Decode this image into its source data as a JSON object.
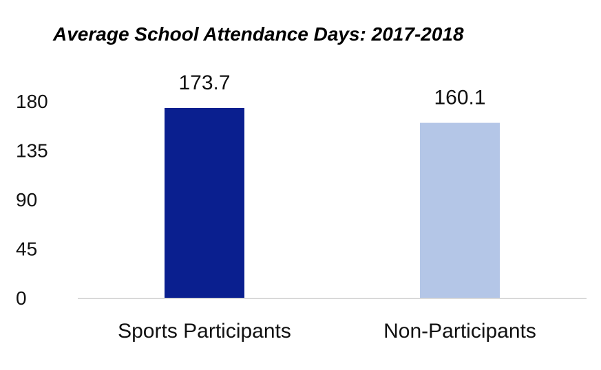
{
  "chart_data": {
    "type": "bar",
    "title": "Average School Attendance Days: 2017-2018",
    "categories": [
      "Sports Participants",
      "Non-Participants"
    ],
    "values": [
      173.7,
      160.1
    ],
    "value_labels": [
      "173.7",
      "160.1"
    ],
    "bar_colors": [
      "#0a1f8f",
      "#b4c6e7"
    ],
    "ylim": [
      0,
      180
    ],
    "yticks": [
      0,
      45,
      90,
      135,
      180
    ],
    "ytick_labels": [
      "0",
      "45",
      "90",
      "135",
      "180"
    ],
    "xlabel": "",
    "ylabel": "",
    "grid": false,
    "axis_color": "#d9d9d9"
  }
}
